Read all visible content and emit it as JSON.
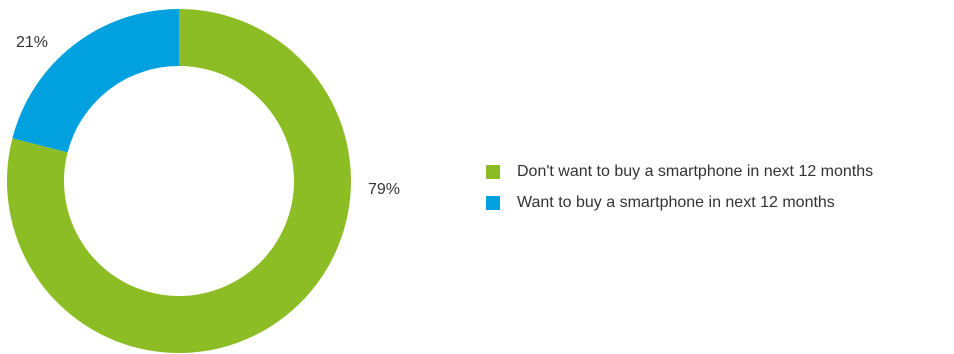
{
  "chart_data": {
    "type": "pie",
    "donut": true,
    "title": "",
    "legend_position": "right",
    "slices": [
      {
        "label": "Don't want to buy a smartphone in next 12 months",
        "value": 79,
        "value_label": "79%",
        "color": "#8cbd24"
      },
      {
        "label": "Want to buy a smartphone in next 12 months",
        "value": 21,
        "value_label": "21%",
        "color": "#00a1de"
      }
    ]
  }
}
